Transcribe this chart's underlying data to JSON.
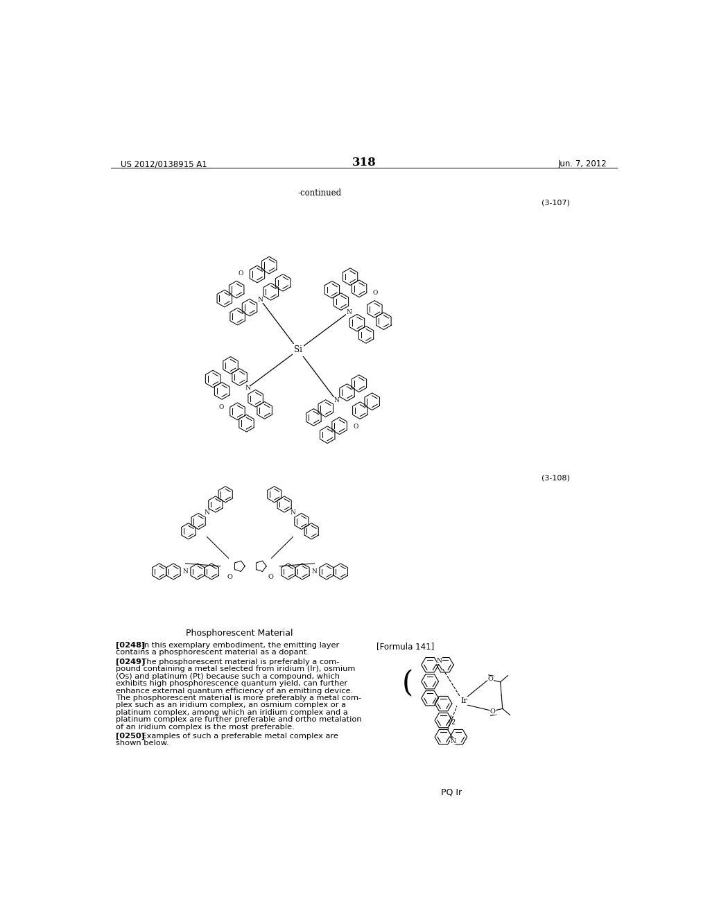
{
  "page_number": "318",
  "patent_number": "US 2012/0138915 A1",
  "date": "Jun. 7, 2012",
  "continued_label": "-continued",
  "formula_label_1": "(3-107)",
  "formula_label_2": "(3-108)",
  "formula_label_3": "[Formula 141]",
  "section_title": "Phosphorescent Material",
  "background_color": "#ffffff",
  "text_color": "#000000",
  "paragraph_0248_lines": [
    "[0248]    In this exemplary embodiment, the emitting layer",
    "contains a phosphorescent material as a dopant."
  ],
  "paragraph_0249_lines": [
    "[0249]    The phosphorescent material is preferably a com-",
    "pound containing a metal selected from iridium (Ir), osmium",
    "(Os) and platinum (Pt) because such a compound, which",
    "exhibits high phosphorescence quantum yield, can further",
    "enhance external quantum efficiency of an emitting device.",
    "The phosphorescent material is more preferably a metal com-",
    "plex such as an iridium complex, an osmium complex or a",
    "platinum complex, among which an iridium complex and a",
    "platinum complex are further preferable and ortho metalation",
    "of an iridium complex is the most preferable."
  ],
  "paragraph_0250_lines": [
    "[0250]    Examples of such a preferable metal complex are",
    "shown below."
  ],
  "pq_ir_label": "PQ Ir"
}
